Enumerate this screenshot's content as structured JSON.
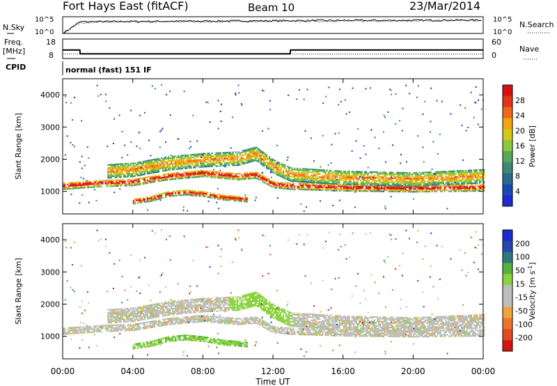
{
  "header": {
    "station": "Fort Hays East (fitACF)",
    "beam": "Beam 10",
    "date": "23/Mar/2014"
  },
  "noise_panel": {
    "left_label": "N.Sky",
    "left_ticks": [
      "10^5",
      "10^0"
    ],
    "right_label": "N.Search",
    "right_ticks": [
      "10^5",
      "10^0"
    ]
  },
  "freq_panel": {
    "left_label_1": "Freq.",
    "left_label_2": "[MHz]",
    "left_ticks": [
      "18",
      "8"
    ],
    "right_label": "Nave",
    "right_ticks": [
      "60",
      "0"
    ]
  },
  "cpid": {
    "label": "CPID",
    "mode_text": "normal (fast) 151 IF"
  },
  "colors": {
    "power": [
      "#1d2cd1",
      "#1c48b4",
      "#2a6a8e",
      "#3c8a76",
      "#5aa85a",
      "#89c93e",
      "#d9c616",
      "#f3a60f",
      "#f0671a",
      "#e6321a",
      "#d90f0f"
    ],
    "velocity": [
      "#1d2cd1",
      "#2448b0",
      "#2e7a7a",
      "#53b33d",
      "#8bd23f",
      "#bdbdbd",
      "#bdbdbd",
      "#f0a43a",
      "#e9762a",
      "#e44a1f",
      "#d51414"
    ]
  },
  "chart_data": [
    {
      "type": "line",
      "title": "Fort Hays East (fitACF)",
      "series": [
        {
          "name": "N.Sky",
          "x": [
            "00:00",
            "01:00",
            "04:00",
            "08:00",
            "12:00",
            "16:00",
            "20:00",
            "24:00"
          ],
          "y_log10": [
            0,
            3.5,
            3.6,
            3.7,
            3.8,
            3.9,
            3.9,
            4.0
          ]
        },
        {
          "name": "N.Search",
          "x": [
            "00:00",
            "01:00",
            "04:00",
            "08:00",
            "12:00",
            "16:00",
            "20:00",
            "24:00"
          ],
          "y_log10": [
            0,
            3.3,
            3.4,
            3.5,
            3.6,
            3.7,
            3.8,
            3.9
          ]
        }
      ],
      "ylim_log10": [
        0,
        5
      ]
    },
    {
      "type": "line",
      "series": [
        {
          "name": "Freq. [MHz]",
          "x": [
            "00:00",
            "00:59",
            "01:00",
            "12:59",
            "13:00",
            "24:00"
          ],
          "y": [
            12.4,
            12.4,
            10.4,
            10.4,
            12.4,
            12.4
          ]
        },
        {
          "name": "Nave",
          "x": [
            "00:00",
            "24:00"
          ],
          "y": [
            14,
            14
          ]
        }
      ],
      "ylim_left": [
        8,
        18
      ],
      "ylim_right": [
        0,
        60
      ]
    },
    {
      "type": "heatmap",
      "title": "Power",
      "ylabel": "Slant Range [km]",
      "colorbar_label": "Power [dB]",
      "colorbar_ticks": [
        "4",
        "8",
        "12",
        "16",
        "20",
        "24",
        "28"
      ],
      "colorbar_range": [
        0,
        30
      ],
      "yticks": [
        "1000",
        "2000",
        "3000",
        "4000"
      ],
      "ylim": [
        300,
        4500
      ],
      "xlim_hours": [
        0,
        24
      ],
      "features": [
        {
          "x": [
            0,
            2,
            4,
            6,
            8,
            10,
            11,
            12,
            13,
            16,
            20,
            24
          ],
          "y": [
            1200,
            1280,
            1320,
            1500,
            1600,
            1500,
            1550,
            1250,
            1200,
            1150,
            1120,
            1150
          ],
          "value": 22
        },
        {
          "x": [
            2.5,
            4,
            6,
            8,
            10,
            11,
            12,
            13,
            16,
            20,
            24
          ],
          "y": [
            1650,
            1700,
            1900,
            2000,
            2050,
            2200,
            1800,
            1550,
            1450,
            1400,
            1500
          ],
          "value": 10
        },
        {
          "x": [
            4.0,
            5,
            6,
            7,
            8,
            9,
            10.5
          ],
          "y": [
            720,
            800,
            950,
            1000,
            950,
            850,
            780
          ],
          "value": 18
        }
      ]
    },
    {
      "type": "heatmap",
      "title": "Velocity",
      "ylabel": "Slant Range [km]",
      "xlabel": "Time UT",
      "colorbar_label": "Velocity [m s^-1]",
      "colorbar_ticks": [
        "200",
        "100",
        "50",
        "15",
        "-15",
        "-50",
        "-100",
        "-200"
      ],
      "yticks": [
        "1000",
        "2000",
        "3000",
        "4000"
      ],
      "ylim": [
        300,
        4500
      ],
      "xticks": [
        "00:00",
        "04:00",
        "08:00",
        "12:00",
        "16:00",
        "20:00",
        "00:00"
      ],
      "xlim_hours": [
        0,
        24
      ]
    }
  ]
}
